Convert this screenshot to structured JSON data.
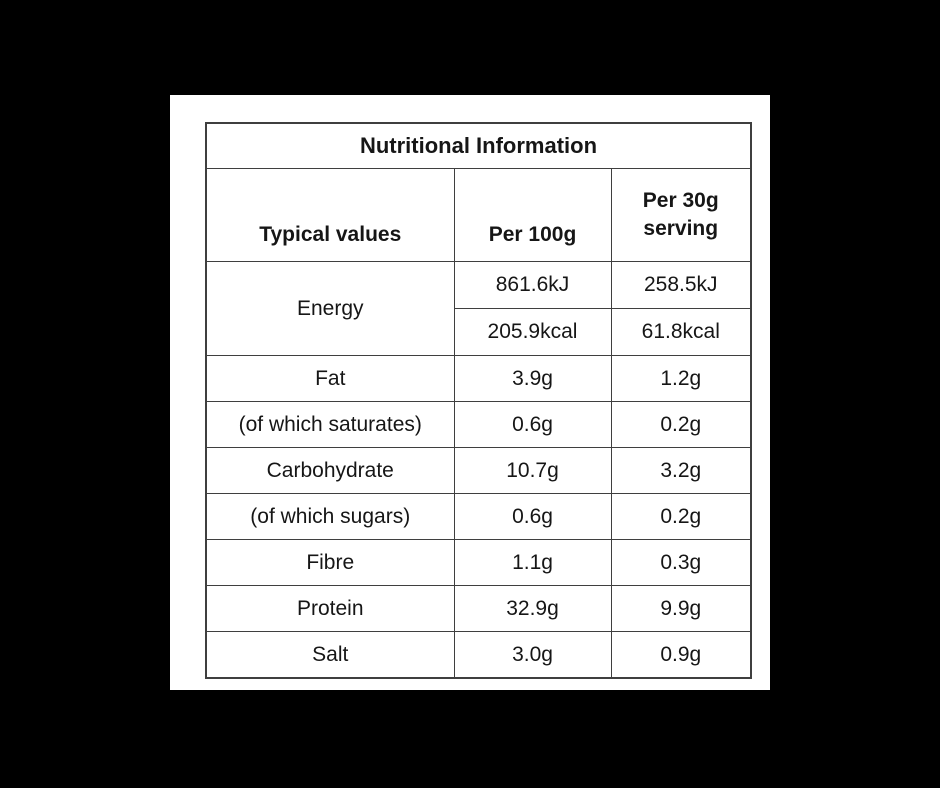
{
  "page": {
    "background_color": "#000000",
    "panel_color": "#ffffff",
    "border_color": "#3f3f3f",
    "text_color": "#161616"
  },
  "table": {
    "title": "Nutritional Information",
    "header": {
      "col_label": "Typical values",
      "col_per100": "Per 100g",
      "col_per30": "Per 30g serving"
    },
    "energy": {
      "label": "Energy",
      "kj_per100": "861.6kJ",
      "kj_per30": "258.5kJ",
      "kcal_per100": "205.9kcal",
      "kcal_per30": "61.8kcal"
    },
    "rows": [
      {
        "label": "Fat",
        "per100": "3.9g",
        "per30": "1.2g"
      },
      {
        "label": "(of which saturates)",
        "per100": "0.6g",
        "per30": "0.2g"
      },
      {
        "label": "Carbohydrate",
        "per100": "10.7g",
        "per30": "3.2g"
      },
      {
        "label": "(of which sugars)",
        "per100": "0.6g",
        "per30": "0.2g"
      },
      {
        "label": "Fibre",
        "per100": "1.1g",
        "per30": "0.3g"
      },
      {
        "label": "Protein",
        "per100": "32.9g",
        "per30": "9.9g"
      },
      {
        "label": "Salt",
        "per100": "3.0g",
        "per30": "0.9g"
      }
    ]
  }
}
